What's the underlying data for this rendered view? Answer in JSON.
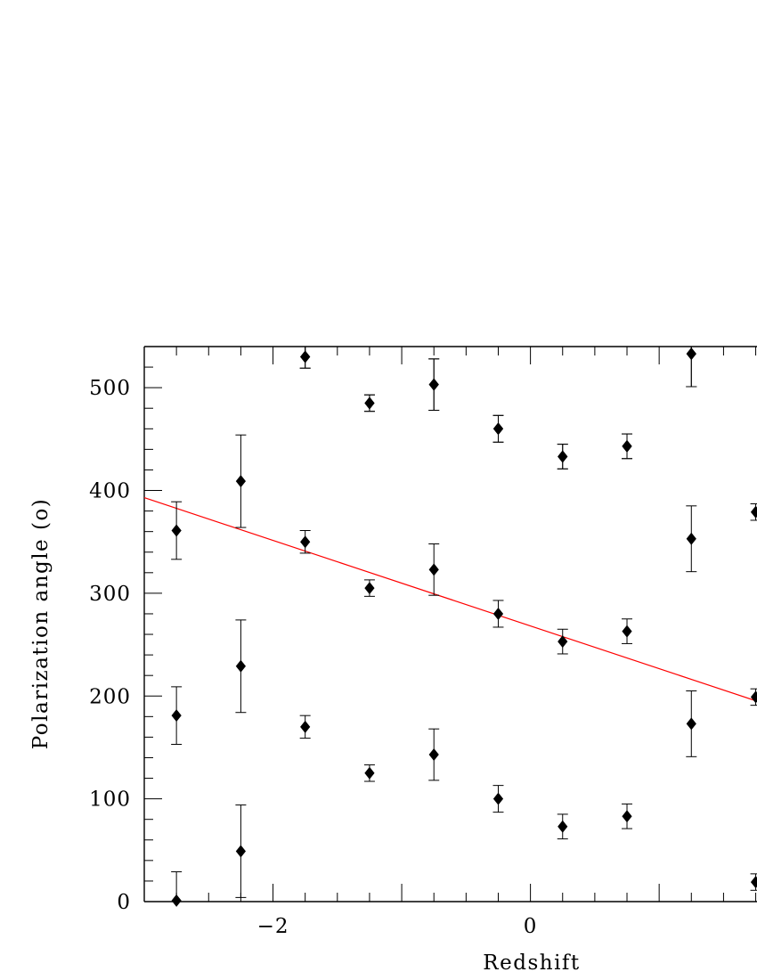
{
  "chart_data": {
    "type": "scatter",
    "title": "",
    "xlabel": "Redshift",
    "ylabel": "Polarization angle (o)",
    "xlim": [
      -3.0,
      1.76
    ],
    "ylim": [
      0,
      540
    ],
    "x_ticks": [
      -2,
      0
    ],
    "x_tick_labels": [
      "−2",
      "0"
    ],
    "y_ticks": [
      0,
      100,
      200,
      300,
      400,
      500
    ],
    "y_tick_labels": [
      "0",
      "100",
      "200",
      "300",
      "400",
      "500"
    ],
    "grid": false,
    "legend": "none",
    "marker_color": "#000000",
    "fit_line_color": "#ff0000",
    "series": [
      {
        "marker": "diamond",
        "x": [
          -2.75,
          -2.25,
          -1.75,
          -1.25,
          -0.75,
          -0.25,
          0.25,
          0.75,
          1.25,
          1.75,
          -2.75,
          -2.25,
          -1.75,
          -1.25,
          -0.75,
          -0.25,
          0.25,
          0.75,
          1.25,
          1.75,
          -2.75,
          -2.25,
          -1.75,
          -1.25,
          -0.75,
          -0.25,
          0.25,
          0.75,
          1.25,
          1.75,
          -1.75,
          -1.25,
          -0.75,
          -0.25,
          0.25,
          0.75,
          1.25
        ],
        "y": [
          1,
          49,
          170,
          125,
          143,
          100,
          73,
          83,
          173,
          19,
          181,
          229,
          350,
          305,
          323,
          280,
          253,
          263,
          353,
          199,
          361,
          409,
          530,
          485,
          503,
          460,
          433,
          443,
          533,
          379,
          530,
          485,
          503,
          460,
          433,
          443,
          533
        ],
        "err": [
          28,
          45,
          11,
          8,
          25,
          13,
          12,
          12,
          32,
          8,
          28,
          45,
          11,
          8,
          25,
          13,
          12,
          12,
          32,
          8,
          28,
          45,
          11,
          8,
          25,
          13,
          12,
          12,
          32,
          8,
          11,
          8,
          25,
          13,
          12,
          12,
          32
        ]
      }
    ],
    "fit_line": {
      "x": [
        -3.0,
        1.76
      ],
      "y": [
        393,
        195
      ]
    }
  }
}
